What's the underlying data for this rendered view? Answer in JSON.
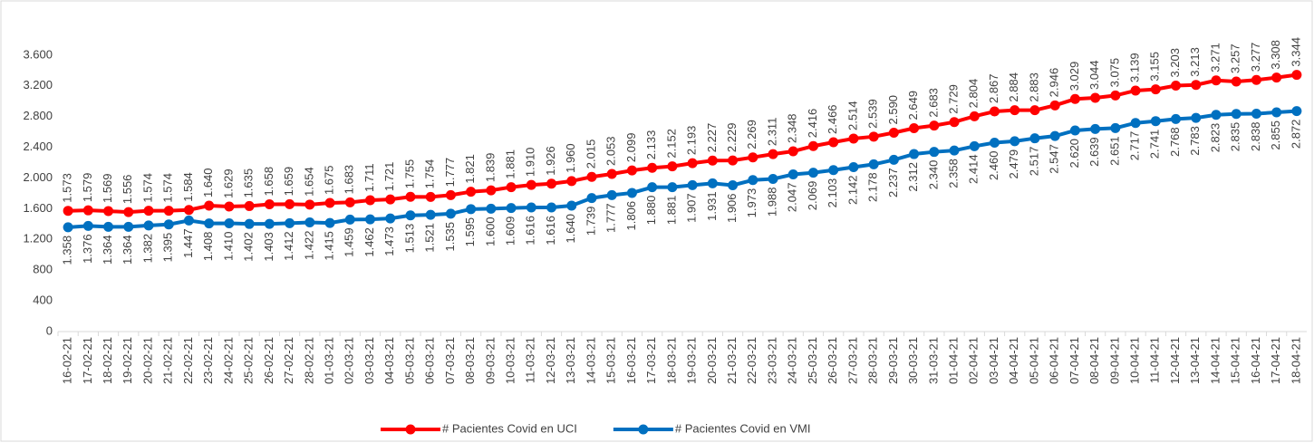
{
  "chart_data": {
    "type": "line",
    "categories": [
      "16-02-21",
      "17-02-21",
      "18-02-21",
      "19-02-21",
      "20-02-21",
      "21-02-21",
      "22-02-21",
      "23-02-21",
      "24-02-21",
      "25-02-21",
      "26-02-21",
      "27-02-21",
      "28-02-21",
      "01-03-21",
      "02-03-21",
      "03-03-21",
      "04-03-21",
      "05-03-21",
      "06-03-21",
      "07-03-21",
      "08-03-21",
      "09-03-21",
      "10-03-21",
      "11-03-21",
      "12-03-21",
      "13-03-21",
      "14-03-21",
      "15-03-21",
      "16-03-21",
      "17-03-21",
      "18-03-21",
      "19-03-21",
      "20-03-21",
      "21-03-21",
      "22-03-21",
      "23-03-21",
      "24-03-21",
      "25-03-21",
      "26-03-21",
      "27-03-21",
      "28-03-21",
      "29-03-21",
      "30-03-21",
      "31-03-21",
      "01-04-21",
      "02-04-21",
      "03-04-21",
      "04-04-21",
      "05-04-21",
      "06-04-21",
      "07-04-21",
      "08-04-21",
      "09-04-21",
      "10-04-21",
      "11-04-21",
      "12-04-21",
      "13-04-21",
      "14-04-21",
      "15-04-21",
      "16-04-21",
      "17-04-21",
      "18-04-21"
    ],
    "series": [
      {
        "name": "# Pacientes Covid en UCI",
        "color": "#ff0000",
        "values": [
          1573,
          1579,
          1569,
          1556,
          1574,
          1574,
          1584,
          1640,
          1629,
          1635,
          1658,
          1659,
          1654,
          1675,
          1683,
          1711,
          1721,
          1755,
          1754,
          1777,
          1821,
          1839,
          1881,
          1910,
          1926,
          1960,
          2015,
          2053,
          2099,
          2133,
          2152,
          2193,
          2227,
          2229,
          2269,
          2311,
          2348,
          2416,
          2466,
          2514,
          2539,
          2590,
          2649,
          2683,
          2729,
          2804,
          2867,
          2884,
          2883,
          2946,
          3029,
          3044,
          3075,
          3139,
          3155,
          3203,
          3213,
          3271,
          3257,
          3277,
          3308,
          3344
        ],
        "value_labels": [
          "1.573",
          "1.579",
          "1.569",
          "1.556",
          "1.574",
          "1.574",
          "1.584",
          "1.640",
          "1.629",
          "1.635",
          "1.658",
          "1.659",
          "1.654",
          "1.675",
          "1.683",
          "1.711",
          "1.721",
          "1.755",
          "1.754",
          "1.777",
          "1.821",
          "1.839",
          "1.881",
          "1.910",
          "1.926",
          "1.960",
          "2.015",
          "2.053",
          "2.099",
          "2.133",
          "2.152",
          "2.193",
          "2.227",
          "2.229",
          "2.269",
          "2.311",
          "2.348",
          "2.416",
          "2.466",
          "2.514",
          "2.539",
          "2.590",
          "2.649",
          "2.683",
          "2.729",
          "2.804",
          "2.867",
          "2.884",
          "2.883",
          "2.946",
          "3.029",
          "3.044",
          "3.075",
          "3.139",
          "3.155",
          "3.203",
          "3.213",
          "3.271",
          "3.257",
          "3.277",
          "3.308",
          "3.344"
        ]
      },
      {
        "name": "# Pacientes Covid en VMI",
        "color": "#0070c0",
        "values": [
          1358,
          1376,
          1364,
          1364,
          1382,
          1395,
          1447,
          1408,
          1410,
          1402,
          1403,
          1412,
          1422,
          1415,
          1459,
          1462,
          1473,
          1513,
          1521,
          1535,
          1595,
          1600,
          1609,
          1616,
          1616,
          1640,
          1739,
          1777,
          1806,
          1880,
          1881,
          1907,
          1931,
          1906,
          1973,
          1988,
          2047,
          2069,
          2103,
          2142,
          2178,
          2237,
          2312,
          2340,
          2358,
          2414,
          2460,
          2479,
          2517,
          2547,
          2620,
          2639,
          2651,
          2717,
          2741,
          2768,
          2783,
          2823,
          2835,
          2838,
          2855,
          2872
        ],
        "value_labels": [
          "1.358",
          "1.376",
          "1.364",
          "1.364",
          "1.382",
          "1.395",
          "1.447",
          "1.408",
          "1.410",
          "1.402",
          "1.403",
          "1.412",
          "1.422",
          "1.415",
          "1.459",
          "1.462",
          "1.473",
          "1.513",
          "1.521",
          "1.535",
          "1.595",
          "1.600",
          "1.609",
          "1.616",
          "1.616",
          "1.640",
          "1.739",
          "1.777",
          "1.806",
          "1.880",
          "1.881",
          "1.907",
          "1.931",
          "1.906",
          "1.973",
          "1.988",
          "2.047",
          "2.069",
          "2.103",
          "2.142",
          "2.178",
          "2.237",
          "2.312",
          "2.340",
          "2.358",
          "2.414",
          "2.460",
          "2.479",
          "2.517",
          "2.547",
          "2.620",
          "2.639",
          "2.651",
          "2.717",
          "2.741",
          "2.768",
          "2.783",
          "2.823",
          "2.835",
          "2.838",
          "2.855",
          "2.872"
        ]
      }
    ],
    "ylim": [
      0,
      4000
    ],
    "yticks": [
      0,
      400,
      800,
      {
        "value": 1200,
        "label": "1.200"
      },
      {
        "value": 1600,
        "label": "1.600"
      },
      {
        "value": 2000,
        "label": "2.000"
      },
      {
        "value": 2400,
        "label": "2.400"
      },
      {
        "value": 2800,
        "label": "2.800"
      },
      {
        "value": 3200,
        "label": "3.200"
      },
      {
        "value": 3600,
        "label": "3.600"
      }
    ],
    "grid": false,
    "legend": "bottom"
  }
}
